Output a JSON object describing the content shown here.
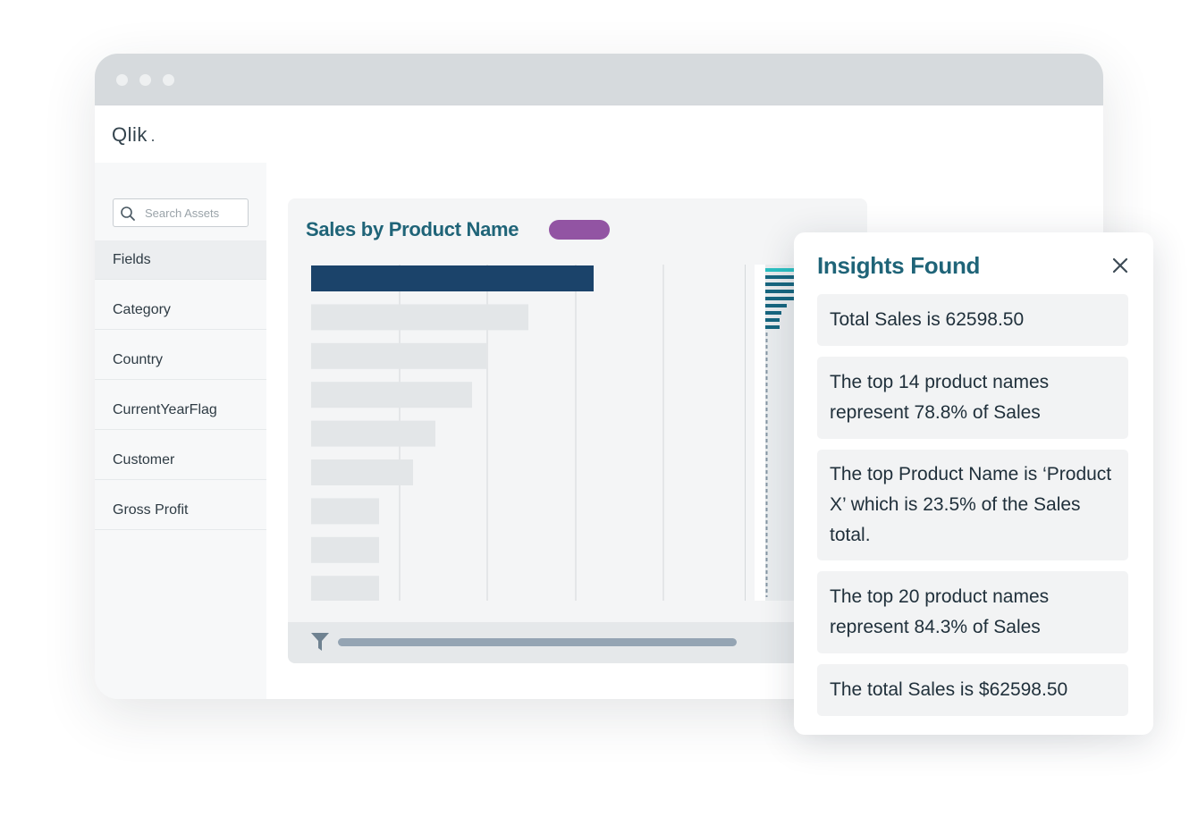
{
  "window": {
    "dots": [
      "window-dot",
      "window-dot",
      "window-dot"
    ]
  },
  "header": {
    "logo_text": "Qlik"
  },
  "sidebar": {
    "search_placeholder": "Search Assets",
    "items": [
      {
        "label": "Fields",
        "active": true
      },
      {
        "label": "Category"
      },
      {
        "label": "Country"
      },
      {
        "label": "CurrentYearFlag"
      },
      {
        "label": "Customer"
      },
      {
        "label": "Gross Profit"
      }
    ]
  },
  "chart": {
    "title": "Sales by Product Name",
    "colors": {
      "highlight_bar": "#1b436a",
      "other_bars": "#e3e6e8",
      "pill": "#9254a3",
      "minimap_bar": "#17667f",
      "minimap_top": "#2bc0c2"
    }
  },
  "chart_data": {
    "type": "bar",
    "orientation": "horizontal",
    "title": "Sales by Product Name",
    "values": [
      100,
      77,
      62,
      57,
      44,
      36,
      24,
      24,
      24
    ],
    "highlighted_index": 0,
    "xlim": [
      0,
      123
    ],
    "grid": true
  },
  "insights": {
    "title": "Insights Found",
    "items": [
      "Total Sales is 62598.50",
      "The top 14 product names represent 78.8% of Sales",
      "The top Product Name is ‘Product X’ which is 23.5% of the Sales total.",
      "The top 20 product names represent 84.3% of Sales",
      "The total Sales is $62598.50"
    ]
  }
}
